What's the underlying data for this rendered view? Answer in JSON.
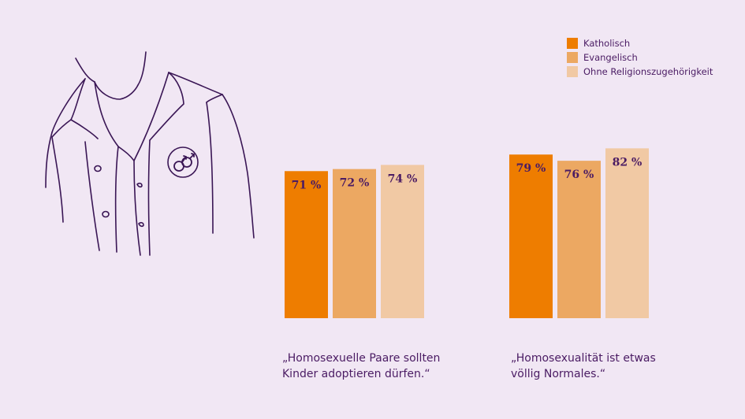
{
  "colors": {
    "background": "#f1e7f4",
    "text": "#4a1b63",
    "katholisch": "#ee7d00",
    "evangelisch": "#eca862",
    "ohne": "#f1c9a4"
  },
  "legend": {
    "items": [
      {
        "label": "Katholisch",
        "color": "#ee7d00"
      },
      {
        "label": "Evangelisch",
        "color": "#eca862"
      },
      {
        "label": "Ohne Religionszugehörigkeit",
        "color": "#f1c9a4"
      }
    ]
  },
  "illustration": {
    "icon": "male-couple-badge-icon"
  },
  "chart_data": [
    {
      "type": "bar",
      "categories": [
        "„Homosexuelle Paare sollten Kinder adoptieren dürfen.“"
      ],
      "caption_lines": [
        "„Homosexuelle Paare sollten",
        "Kinder adoptieren dürfen.“"
      ],
      "series": [
        {
          "name": "Katholisch",
          "values": [
            71
          ],
          "label": "71 %"
        },
        {
          "name": "Evangelisch",
          "values": [
            72
          ],
          "label": "72 %"
        },
        {
          "name": "Ohne Religionszugehörigkeit",
          "values": [
            74
          ],
          "label": "74 %"
        }
      ],
      "unit": "%",
      "ylim": [
        0,
        100
      ],
      "grid": false,
      "legend_position": "top-right"
    },
    {
      "type": "bar",
      "categories": [
        "„Homosexualität ist etwas völlig Normales.“"
      ],
      "caption_lines": [
        "„Homosexualität ist etwas",
        "völlig Normales.“"
      ],
      "series": [
        {
          "name": "Katholisch",
          "values": [
            79
          ],
          "label": "79 %"
        },
        {
          "name": "Evangelisch",
          "values": [
            76
          ],
          "label": "76 %"
        },
        {
          "name": "Ohne Religionszugehörigkeit",
          "values": [
            82
          ],
          "label": "82 %"
        }
      ],
      "unit": "%",
      "ylim": [
        0,
        100
      ],
      "grid": false,
      "legend_position": "top-right"
    }
  ]
}
